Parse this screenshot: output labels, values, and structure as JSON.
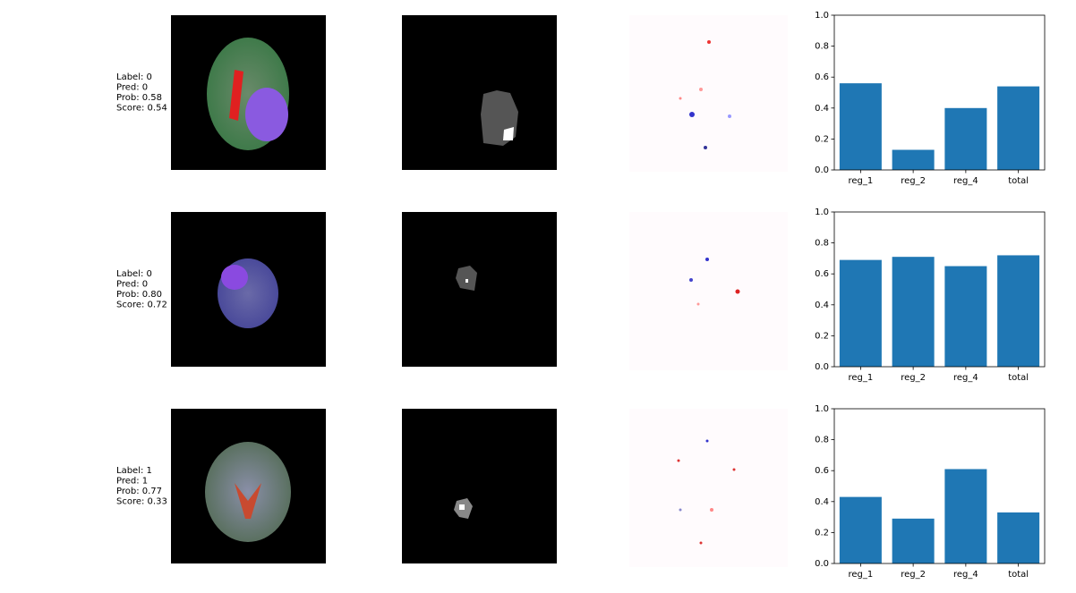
{
  "rows": [
    {
      "label": "Label: 0",
      "pred": "Pred:  0",
      "prob": "Prob:  0.58",
      "score": "Score: 0.54"
    },
    {
      "label": "Label: 0",
      "pred": "Pred:  0",
      "prob": "Prob:  0.80",
      "score": "Score: 0.72"
    },
    {
      "label": "Label: 1",
      "pred": "Pred:  1",
      "prob": "Prob:  0.77",
      "score": "Score: 0.33"
    }
  ],
  "chart_data": [
    {
      "type": "bar",
      "categories": [
        "reg_1",
        "reg_2",
        "reg_4",
        "total"
      ],
      "values": [
        0.56,
        0.13,
        0.4,
        0.54
      ],
      "color": "#1f77b4",
      "ylim": [
        0,
        1
      ],
      "yticks": [
        {
          "value": 0,
          "label": "0.0"
        },
        0.2,
        0.4,
        0.6,
        0.8,
        {
          "value": 1,
          "label": "1.0"
        }
      ]
    },
    {
      "type": "bar",
      "categories": [
        "reg_1",
        "reg_2",
        "reg_4",
        "total"
      ],
      "values": [
        0.69,
        0.71,
        0.65,
        0.72
      ],
      "color": "#1f77b4",
      "ylim": [
        0,
        1
      ],
      "yticks": [
        {
          "value": 0,
          "label": "0.0"
        },
        0.2,
        0.4,
        0.6,
        0.8,
        {
          "value": 1,
          "label": "1.0"
        }
      ]
    },
    {
      "type": "bar",
      "categories": [
        "reg_1",
        "reg_2",
        "reg_4",
        "total"
      ],
      "values": [
        0.43,
        0.29,
        0.61,
        0.33
      ],
      "color": "#1f77b4",
      "ylim": [
        0,
        1
      ],
      "yticks": [
        {
          "value": 0,
          "label": "0.0"
        },
        0.2,
        0.4,
        0.6,
        0.8,
        {
          "value": 1,
          "label": "1.0"
        }
      ]
    }
  ]
}
